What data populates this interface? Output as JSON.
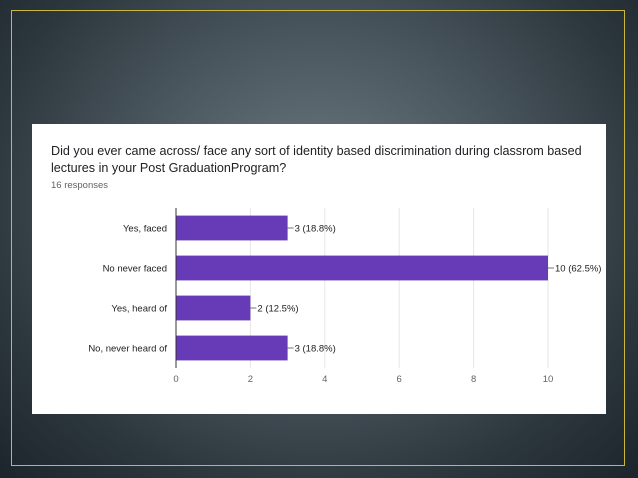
{
  "chart_data": {
    "type": "bar",
    "orientation": "horizontal",
    "title": "Did you ever came across/ face any sort of identity based discrimination during classrom based lectures in your Post GraduationProgram?",
    "subtitle": "16 responses",
    "categories": [
      "Yes, faced",
      "No never faced",
      "Yes, heard of",
      "No, never heard of"
    ],
    "values": [
      3,
      10,
      2,
      3
    ],
    "data_labels": [
      "3 (18.8%)",
      "10 (62.5%)",
      "2 (12.5%)",
      "3 (18.8%)"
    ],
    "xlim": [
      0,
      10
    ],
    "xticks": [
      0,
      2,
      4,
      6,
      8,
      10
    ],
    "grid": true,
    "bar_color": "#673ab7"
  }
}
